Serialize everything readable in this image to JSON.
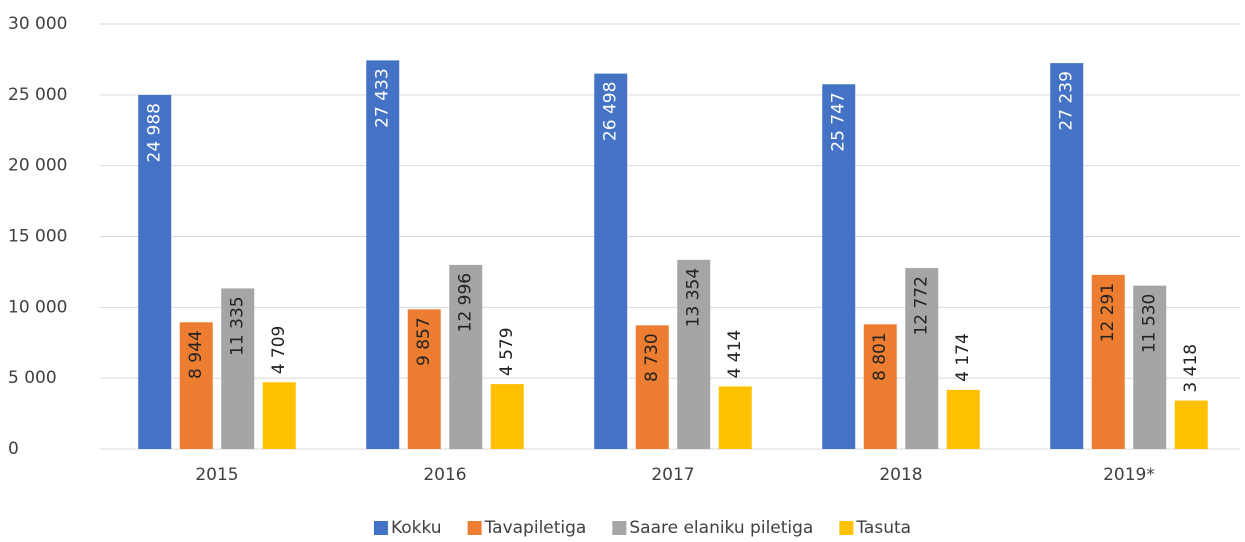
{
  "chart_data": {
    "type": "bar",
    "categories": [
      "2015",
      "2016",
      "2017",
      "2018",
      "2019*"
    ],
    "series": [
      {
        "name": "Kokku",
        "color": "#4472c4",
        "values": [
          24988,
          27433,
          26498,
          25747,
          27239
        ],
        "value_labels": [
          "24 988",
          "27 433",
          "26 498",
          "25 747",
          "27 239"
        ]
      },
      {
        "name": "Tavapiletiga",
        "color": "#ed7d31",
        "values": [
          8944,
          9857,
          8730,
          8801,
          12291
        ],
        "value_labels": [
          "8 944",
          "9 857",
          "8 730",
          "8 801",
          "12 291"
        ]
      },
      {
        "name": "Saare elaniku piletiga",
        "color": "#a5a5a5",
        "values": [
          11335,
          12996,
          13354,
          12772,
          11530
        ],
        "value_labels": [
          "11 335",
          "12 996",
          "13 354",
          "12 772",
          "11 530"
        ]
      },
      {
        "name": "Tasuta",
        "color": "#ffc000",
        "values": [
          4709,
          4579,
          4414,
          4174,
          3418
        ],
        "value_labels": [
          "4 709",
          "4 579",
          "4 414",
          "4 174",
          "3 418"
        ]
      }
    ],
    "ylim": [
      0,
      30000
    ],
    "yticks": [
      0,
      {
        "value": 5000,
        "label": "5 000"
      },
      {
        "value": 10000,
        "label": "10 000"
      },
      {
        "value": 15000,
        "label": "15 000"
      },
      {
        "value": 20000,
        "label": "20 000"
      },
      {
        "value": 25000,
        "label": "25 000"
      },
      {
        "value": 30000,
        "label": "30 000"
      }
    ],
    "grid": true,
    "legend": "bottom"
  }
}
